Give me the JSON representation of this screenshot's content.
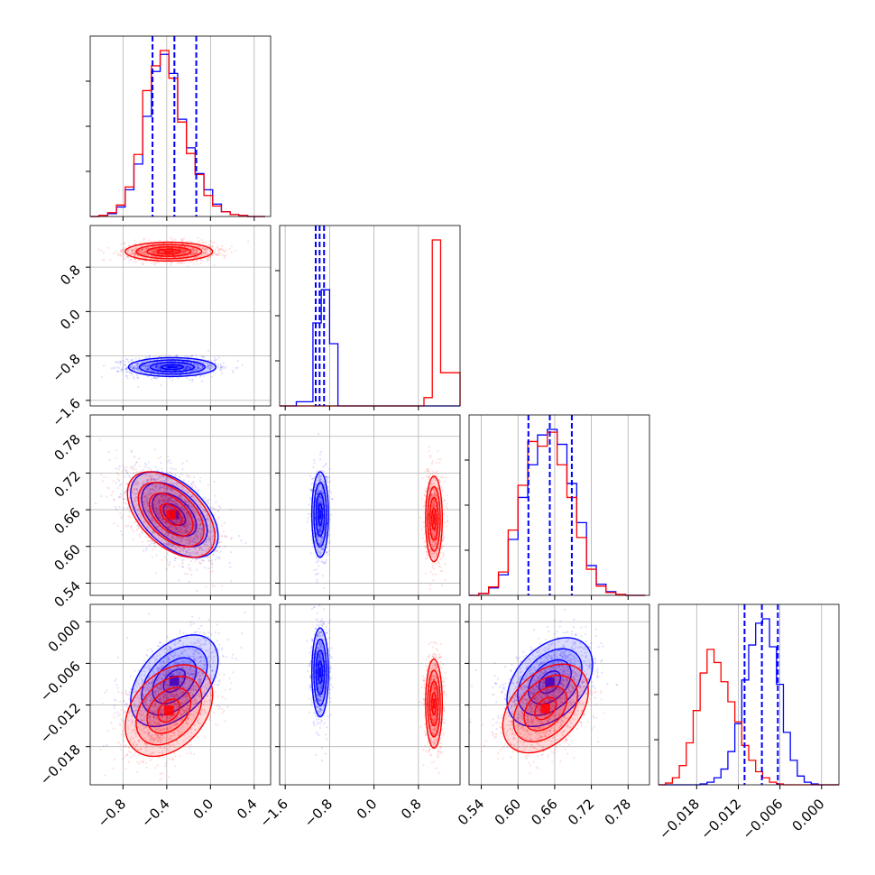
{
  "colors": {
    "series_a": "#0000ff",
    "series_b": "#ff0000",
    "grid": "#b0b0b0",
    "frame": "#000000"
  },
  "chart_data": {
    "type": "corner",
    "grid": true,
    "series": [
      {
        "name": "",
        "color": "#0000ff",
        "quantiles": {
          "p0": [
            -0.53,
            -0.33,
            -0.13
          ],
          "p1": [
            -1.05,
            -0.98,
            -0.9
          ],
          "p2": [
            0.617,
            0.652,
            0.688
          ],
          "p3": [
            -0.0111,
            -0.0086,
            -0.0063
          ]
        }
      },
      {
        "name": "",
        "color": "#ff0000"
      }
    ],
    "parameters": [
      {
        "range": [
          -1.1,
          0.55
        ],
        "ticks": [
          -0.8,
          -0.4,
          0.0,
          0.4
        ],
        "tick_labels": [
          "−0.8",
          "−0.4",
          "0.0",
          "0.4"
        ]
      },
      {
        "range": [
          -1.7,
          1.55
        ],
        "ticks": [
          -1.6,
          -0.8,
          0.0,
          0.8
        ],
        "tick_labels": [
          "−1.6",
          "−0.8",
          "0.0",
          "0.8"
        ]
      },
      {
        "range": [
          0.52,
          0.815
        ],
        "ticks": [
          0.54,
          0.6,
          0.66,
          0.72,
          0.78
        ],
        "tick_labels": [
          "0.54",
          "0.60",
          "0.66",
          "0.72",
          "0.78"
        ]
      },
      {
        "range": [
          -0.0235,
          0.0025
        ],
        "ticks": [
          -0.018,
          -0.012,
          -0.006,
          0.0
        ],
        "tick_labels": [
          "−0.018",
          "−0.012",
          "−0.006",
          "0.000"
        ]
      }
    ],
    "histograms": [
      {
        "param": 0,
        "bins": [
          -1.1,
          -1.02,
          -0.94,
          -0.86,
          -0.78,
          -0.7,
          -0.62,
          -0.54,
          -0.46,
          -0.38,
          -0.3,
          -0.22,
          -0.14,
          -0.06,
          0.02,
          0.1,
          0.18,
          0.26,
          0.34,
          0.42,
          0.5
        ],
        "series_a": [
          0,
          1,
          3,
          10,
          28,
          55,
          105,
          152,
          170,
          150,
          102,
          72,
          45,
          28,
          13,
          5,
          2,
          1,
          0,
          0
        ],
        "series_b": [
          0,
          1,
          4,
          12,
          31,
          65,
          132,
          158,
          174,
          145,
          99,
          66,
          44,
          22,
          11,
          5,
          2,
          1,
          0,
          0
        ]
      },
      {
        "param": 1,
        "bins": [
          -1.7,
          -1.4,
          -1.1,
          -0.95,
          -0.8,
          -0.65,
          -0.4,
          0.0,
          0.4,
          0.75,
          0.9,
          1.05,
          1.2,
          1.55
        ],
        "series_a": [
          0,
          1,
          20,
          28,
          15,
          0,
          0,
          0,
          0,
          0,
          0,
          0,
          0
        ],
        "series_b": [
          0,
          0,
          0,
          0,
          0,
          0,
          0,
          0,
          0,
          0,
          2,
          40,
          8
        ]
      },
      {
        "param": 2,
        "bins": [
          0.52,
          0.536,
          0.552,
          0.568,
          0.584,
          0.6,
          0.616,
          0.632,
          0.648,
          0.664,
          0.68,
          0.696,
          0.712,
          0.728,
          0.744,
          0.76,
          0.776,
          0.792,
          0.808
        ],
        "series_a": [
          0,
          2,
          8,
          22,
          60,
          105,
          140,
          172,
          178,
          162,
          120,
          78,
          32,
          12,
          4,
          1,
          0,
          0
        ],
        "series_b": [
          0,
          2,
          9,
          25,
          70,
          118,
          165,
          160,
          175,
          140,
          105,
          62,
          28,
          10,
          3,
          1,
          0,
          0
        ]
      },
      {
        "param": 3,
        "bins": [
          -0.0235,
          -0.0225,
          -0.0215,
          -0.0205,
          -0.0195,
          -0.0185,
          -0.0175,
          -0.0165,
          -0.0155,
          -0.0145,
          -0.0135,
          -0.0125,
          -0.0115,
          -0.0105,
          -0.0095,
          -0.0085,
          -0.0075,
          -0.0065,
          -0.0055,
          -0.0045,
          -0.0035,
          -0.0025,
          -0.0015,
          -0.0005,
          0.0005,
          0.0015,
          0.0025
        ],
        "series_a": [
          0,
          0,
          0,
          0,
          0,
          0,
          1,
          3,
          8,
          18,
          38,
          70,
          120,
          160,
          185,
          190,
          158,
          115,
          60,
          28,
          10,
          3,
          1,
          0,
          0,
          0
        ],
        "series_b": [
          0,
          2,
          8,
          22,
          48,
          85,
          128,
          155,
          140,
          118,
          95,
          72,
          45,
          28,
          15,
          8,
          3,
          1,
          0,
          0,
          0,
          0,
          0,
          0,
          0,
          0
        ]
      }
    ],
    "pairs": [
      {
        "x": 0,
        "y": 1,
        "series_a": {
          "mean": [
            -0.35,
            -1.0
          ],
          "sd": [
            0.2,
            0.085
          ],
          "rho": 0.0,
          "scatter_n": 1400
        },
        "series_b": {
          "mean": [
            -0.38,
            1.08
          ],
          "sd": [
            0.2,
            0.085
          ],
          "rho": 0.0,
          "scatter_n": 1400
        }
      },
      {
        "x": 0,
        "y": 2,
        "series_a": {
          "mean": [
            -0.33,
            0.652
          ],
          "sd": [
            0.2,
            0.035
          ],
          "rho": -0.5,
          "scatter_n": 1200
        },
        "series_b": {
          "mean": [
            -0.36,
            0.652
          ],
          "sd": [
            0.2,
            0.035
          ],
          "rho": -0.5,
          "scatter_n": 1200
        }
      },
      {
        "x": 1,
        "y": 2,
        "series_a": {
          "mean": [
            -0.97,
            0.652
          ],
          "sd": [
            0.075,
            0.035
          ],
          "rho": 0.0,
          "scatter_n": 1000
        },
        "series_b": {
          "mean": [
            1.08,
            0.645
          ],
          "sd": [
            0.075,
            0.035
          ],
          "rho": 0.0,
          "scatter_n": 1000
        }
      },
      {
        "x": 0,
        "y": 3,
        "series_a": {
          "mean": [
            -0.33,
            -0.0085
          ],
          "sd": [
            0.2,
            0.0033
          ],
          "rho": 0.45,
          "scatter_n": 1200
        },
        "series_b": {
          "mean": [
            -0.38,
            -0.0128
          ],
          "sd": [
            0.2,
            0.0033
          ],
          "rho": 0.35,
          "scatter_n": 1200
        }
      },
      {
        "x": 1,
        "y": 3,
        "series_a": {
          "mean": [
            -0.97,
            -0.0073
          ],
          "sd": [
            0.075,
            0.0032
          ],
          "rho": 0.0,
          "scatter_n": 1000
        },
        "series_b": {
          "mean": [
            1.08,
            -0.0118
          ],
          "sd": [
            0.075,
            0.0032
          ],
          "rho": 0.0,
          "scatter_n": 1000
        }
      },
      {
        "x": 2,
        "y": 3,
        "series_a": {
          "mean": [
            0.652,
            -0.0087
          ],
          "sd": [
            0.035,
            0.0032
          ],
          "rho": 0.4,
          "scatter_n": 1200
        },
        "series_b": {
          "mean": [
            0.645,
            -0.0125
          ],
          "sd": [
            0.035,
            0.0032
          ],
          "rho": 0.4,
          "scatter_n": 1200
        }
      }
    ],
    "contour_levels_sigma": [
      0.5,
      1.0,
      1.5,
      2.0
    ]
  }
}
